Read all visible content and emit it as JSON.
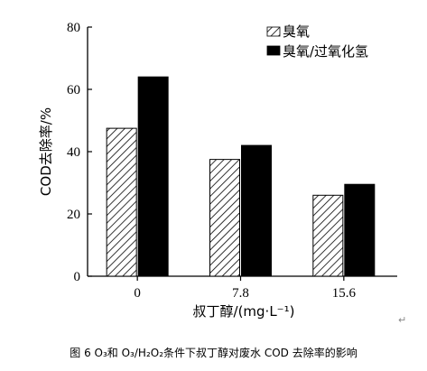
{
  "chart_data": {
    "type": "bar",
    "categories": [
      "0",
      "7.8",
      "15.6"
    ],
    "series": [
      {
        "name": "臭氧",
        "values": [
          47.5,
          37.5,
          26
        ],
        "pattern": "diagonal-hatch",
        "color": "#ffffff"
      },
      {
        "name": "臭氧/过氧化氢",
        "values": [
          64,
          42,
          29.5
        ],
        "pattern": "solid",
        "color": "#000000"
      }
    ],
    "xlabel": "叔丁醇/(mg·L⁻¹)",
    "ylabel": "COD去除率/%",
    "ylim": [
      0,
      80
    ],
    "yticks": [
      0,
      20,
      40,
      60,
      80
    ],
    "grid": false,
    "legend": "top-right"
  },
  "caption": "图 6   O₃和 O₃/H₂O₂条件下叔丁醇对废水 COD 去除率的影响",
  "paragraph_mark": "↵"
}
